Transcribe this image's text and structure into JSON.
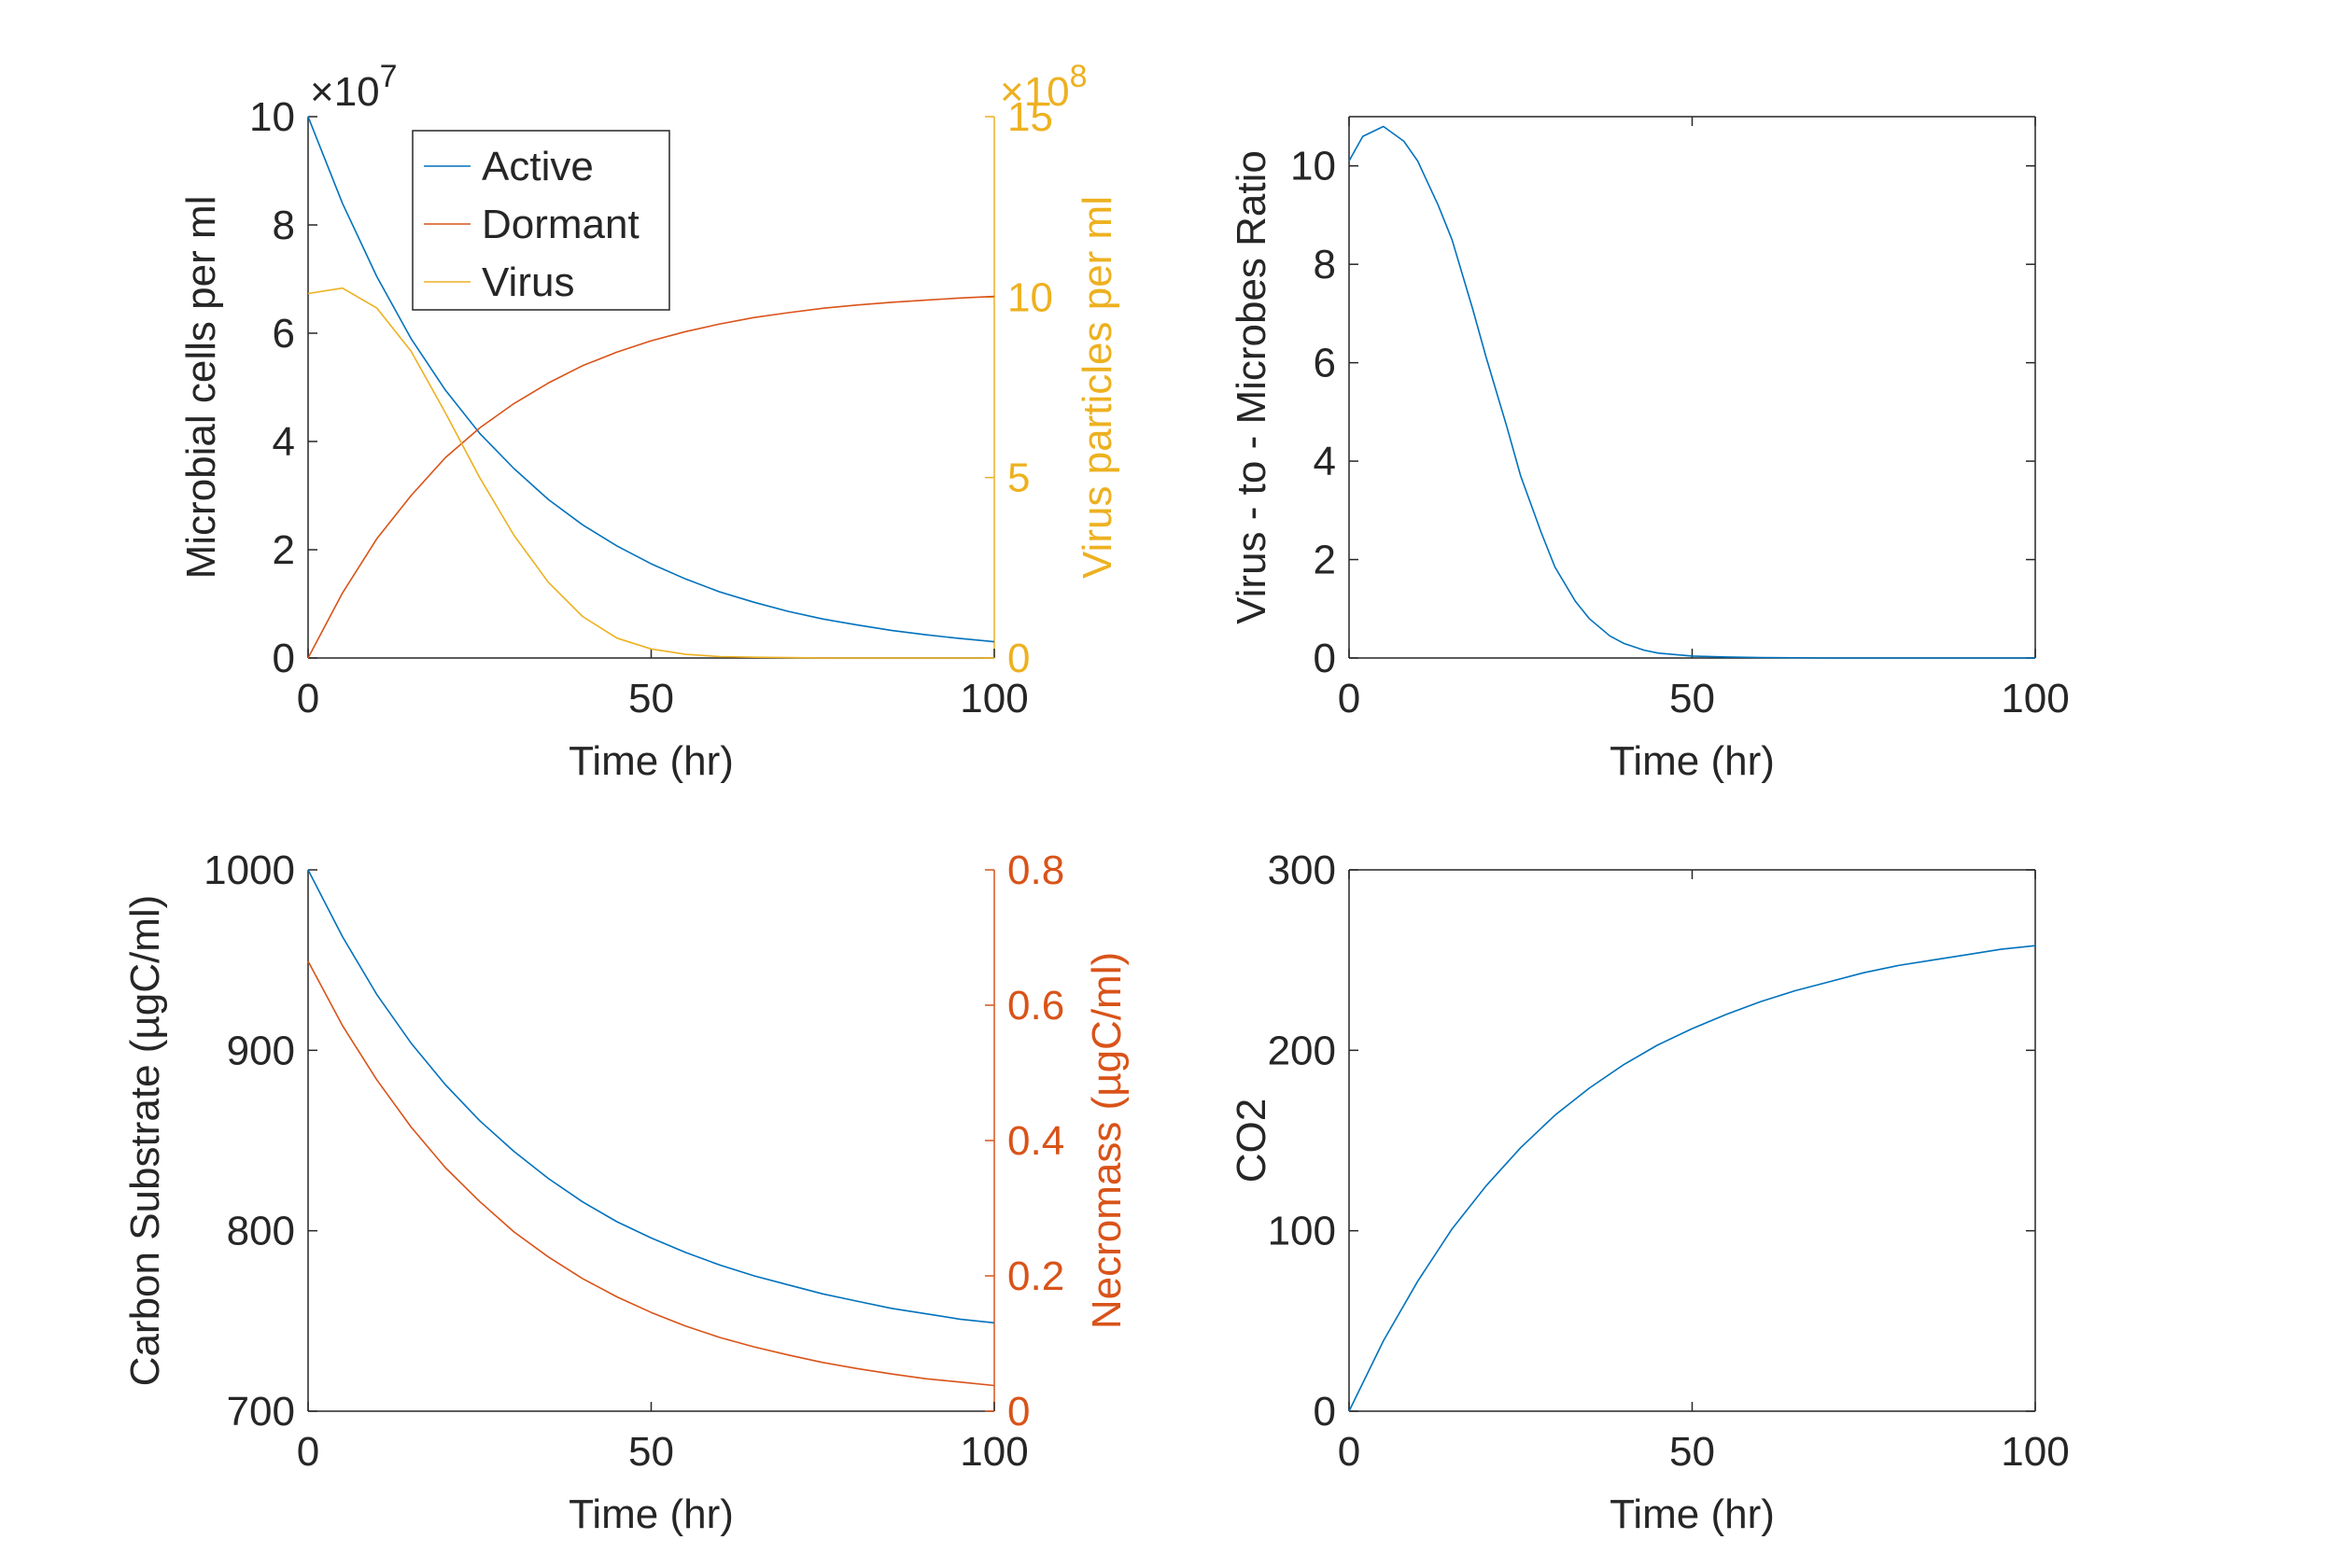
{
  "figure_title": "",
  "chart_data": [
    {
      "type": "line",
      "title": "",
      "xlabel": "Time (hr)",
      "ylabel": "Microbial cells per ml",
      "y_exponent_label": "×10",
      "y_exponent": "7",
      "y2label": "Virus particles per ml",
      "y2_exponent_label": "×10",
      "y2_exponent": "8",
      "xlim": [
        0,
        100
      ],
      "ylim": [
        0,
        10
      ],
      "y2lim": [
        0,
        15
      ],
      "xticks": [
        0,
        50,
        100
      ],
      "yticks": [
        0,
        2,
        4,
        6,
        8,
        10
      ],
      "y2ticks": [
        0,
        5,
        10,
        15
      ],
      "legend_position": "top-left",
      "grid": false,
      "colors": {
        "left_axis": "#262626",
        "right_axis": "#EDB120"
      },
      "x": [
        0,
        5,
        10,
        15,
        20,
        25,
        30,
        35,
        40,
        45,
        50,
        55,
        60,
        65,
        70,
        75,
        80,
        85,
        90,
        95,
        100
      ],
      "series": [
        {
          "name": "Active",
          "axis": "left",
          "color": "#0072BD",
          "values": [
            10.0,
            8.4,
            7.05,
            5.9,
            4.95,
            4.15,
            3.5,
            2.93,
            2.46,
            2.07,
            1.74,
            1.46,
            1.22,
            1.03,
            0.86,
            0.72,
            0.61,
            0.51,
            0.43,
            0.36,
            0.3
          ]
        },
        {
          "name": "Dormant",
          "axis": "left",
          "color": "#D95319",
          "values": [
            0.0,
            1.2,
            2.2,
            3.0,
            3.7,
            4.25,
            4.7,
            5.08,
            5.4,
            5.65,
            5.86,
            6.03,
            6.17,
            6.29,
            6.38,
            6.46,
            6.52,
            6.57,
            6.61,
            6.65,
            6.68
          ]
        },
        {
          "name": "Virus",
          "axis": "right",
          "color": "#EDB120",
          "values": [
            10.1,
            10.25,
            9.7,
            8.5,
            6.8,
            5.0,
            3.4,
            2.1,
            1.15,
            0.55,
            0.25,
            0.1,
            0.04,
            0.02,
            0.01,
            0.0,
            0.0,
            0.0,
            0.0,
            0.0,
            0.0
          ]
        }
      ]
    },
    {
      "type": "line",
      "title": "",
      "xlabel": "Time (hr)",
      "ylabel": "Virus - to - Microbes Ratio",
      "xlim": [
        0,
        100
      ],
      "ylim": [
        0,
        11
      ],
      "xticks": [
        0,
        50,
        100
      ],
      "yticks": [
        0,
        2,
        4,
        6,
        8,
        10
      ],
      "grid": false,
      "x": [
        0,
        2,
        5,
        8,
        10,
        13,
        15,
        18,
        20,
        23,
        25,
        28,
        30,
        33,
        35,
        38,
        40,
        43,
        45,
        50,
        55,
        60,
        70,
        80,
        90,
        100
      ],
      "series": [
        {
          "name": "",
          "color": "#0072BD",
          "values": [
            10.1,
            10.6,
            10.8,
            10.5,
            10.1,
            9.2,
            8.5,
            7.1,
            6.1,
            4.7,
            3.7,
            2.55,
            1.85,
            1.15,
            0.8,
            0.45,
            0.3,
            0.16,
            0.1,
            0.04,
            0.02,
            0.01,
            0.0,
            0.0,
            0.0,
            0.0
          ]
        }
      ]
    },
    {
      "type": "line",
      "title": "",
      "xlabel": "Time (hr)",
      "ylabel": "Carbon Substrate (µgC/ml)",
      "y2label": "Necromass (µgC/ml)",
      "xlim": [
        0,
        100
      ],
      "ylim": [
        700,
        1000
      ],
      "y2lim": [
        0,
        0.8
      ],
      "xticks": [
        0,
        50,
        100
      ],
      "yticks": [
        700,
        800,
        900,
        1000
      ],
      "y2ticks": [
        0,
        0.2,
        0.4,
        0.6,
        0.8
      ],
      "grid": false,
      "colors": {
        "left_axis": "#262626",
        "right_axis": "#D95319"
      },
      "x": [
        0,
        5,
        10,
        15,
        20,
        25,
        30,
        35,
        40,
        45,
        50,
        55,
        60,
        65,
        70,
        75,
        80,
        85,
        90,
        95,
        100
      ],
      "series": [
        {
          "name": "",
          "axis": "left",
          "color": "#0072BD",
          "values": [
            1000,
            963,
            931,
            904,
            881,
            861,
            844,
            829,
            816,
            805,
            796,
            788,
            781,
            775,
            770,
            765,
            761,
            757,
            754,
            751,
            749
          ]
        },
        {
          "name": "",
          "axis": "right",
          "color": "#D95319",
          "values": [
            0.665,
            0.57,
            0.49,
            0.42,
            0.36,
            0.31,
            0.265,
            0.228,
            0.196,
            0.169,
            0.146,
            0.126,
            0.109,
            0.095,
            0.083,
            0.072,
            0.063,
            0.055,
            0.048,
            0.043,
            0.038
          ]
        }
      ]
    },
    {
      "type": "line",
      "title": "",
      "xlabel": "Time (hr)",
      "ylabel": "CO2",
      "xlim": [
        0,
        100
      ],
      "ylim": [
        0,
        300
      ],
      "xticks": [
        0,
        50,
        100
      ],
      "yticks": [
        0,
        100,
        200,
        300
      ],
      "grid": false,
      "x": [
        0,
        5,
        10,
        15,
        20,
        25,
        30,
        35,
        40,
        45,
        50,
        55,
        60,
        65,
        70,
        75,
        80,
        85,
        90,
        95,
        100
      ],
      "series": [
        {
          "name": "",
          "color": "#0072BD",
          "values": [
            0,
            39,
            72,
            101,
            125,
            146,
            164,
            179,
            192,
            203,
            212,
            220,
            227,
            233,
            238,
            243,
            247,
            250,
            253,
            256,
            258
          ]
        }
      ]
    }
  ]
}
